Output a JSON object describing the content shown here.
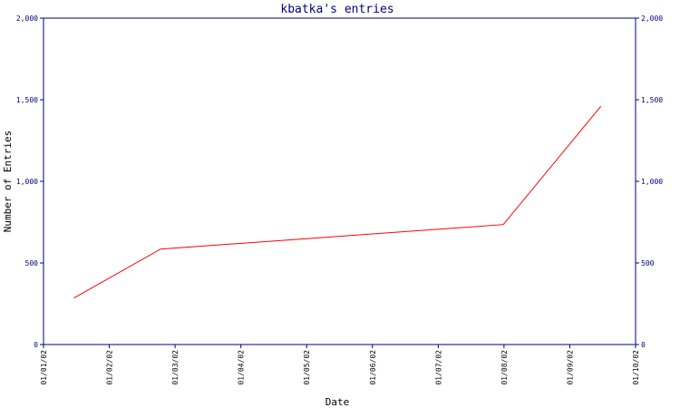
{
  "chart_data": {
    "type": "line",
    "title": "kbatka's entries",
    "xlabel": "Date",
    "ylabel": "Number of Entries",
    "x_ticks": [
      "01/01/02",
      "01/02/02",
      "01/03/02",
      "01/04/02",
      "01/05/02",
      "01/06/02",
      "01/07/02",
      "01/08/02",
      "01/09/02",
      "01/10/02"
    ],
    "y_ticks": [
      "0",
      "500",
      "1,000",
      "1,500",
      "2,000"
    ],
    "ylim": [
      0,
      2000
    ],
    "xlim": [
      "2002-01-01",
      "2002-10-01"
    ],
    "grid": false,
    "colors": {
      "axis": "#000080",
      "line": "#ff0000",
      "background": "#ffffff"
    },
    "series": [
      {
        "x": [
          "2002-01-15",
          "2002-02-24",
          "2002-08-01",
          "2002-09-15"
        ],
        "y": [
          285,
          585,
          735,
          1460
        ]
      }
    ]
  }
}
